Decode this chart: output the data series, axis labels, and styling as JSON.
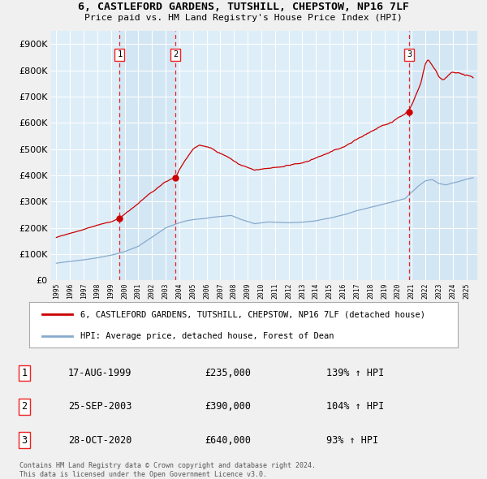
{
  "title": "6, CASTLEFORD GARDENS, TUTSHILL, CHEPSTOW, NP16 7LF",
  "subtitle": "Price paid vs. HM Land Registry's House Price Index (HPI)",
  "legend_line1": "6, CASTLEFORD GARDENS, TUTSHILL, CHEPSTOW, NP16 7LF (detached house)",
  "legend_line2": "HPI: Average price, detached house, Forest of Dean",
  "sale1_label": "1",
  "sale1_date": "17-AUG-1999",
  "sale1_price": "£235,000",
  "sale1_hpi": "139% ↑ HPI",
  "sale1_year": 1999.63,
  "sale1_value": 235000,
  "sale2_label": "2",
  "sale2_date": "25-SEP-2003",
  "sale2_price": "£390,000",
  "sale2_hpi": "104% ↑ HPI",
  "sale2_year": 2003.73,
  "sale2_value": 390000,
  "sale3_label": "3",
  "sale3_date": "28-OCT-2020",
  "sale3_price": "£640,000",
  "sale3_hpi": "93% ↑ HPI",
  "sale3_year": 2020.82,
  "sale3_value": 640000,
  "footer1": "Contains HM Land Registry data © Crown copyright and database right 2024.",
  "footer2": "This data is licensed under the Open Government Licence v3.0.",
  "red_color": "#cc0000",
  "blue_color": "#88aacc",
  "chart_bg": "#ddeef8",
  "fig_bg": "#f0f0f0",
  "dashed_color": "#ee2222",
  "shade_color": "#c8ddf0",
  "ylim_max": 950000,
  "xmin": 1994.62,
  "xmax": 2025.8,
  "xtick_start": 1995,
  "xtick_end": 2025
}
